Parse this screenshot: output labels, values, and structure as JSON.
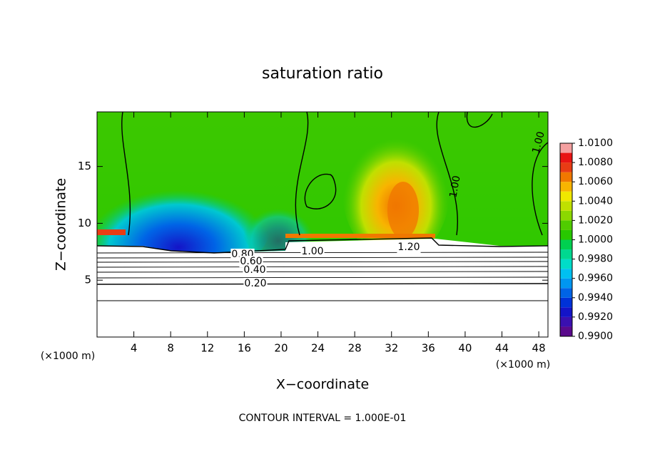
{
  "chart_data": {
    "type": "contour",
    "title": "saturation ratio",
    "x_label": "X−coordinate",
    "y_label": "Z−coordinate",
    "x_unit": "(×1000 m)",
    "footer": "CONTOUR INTERVAL = 1.000E-01",
    "xlim": [
      0,
      49
    ],
    "ylim": [
      0,
      19.8
    ],
    "xticks": [
      4,
      8,
      12,
      16,
      20,
      24,
      28,
      32,
      36,
      40,
      44,
      48
    ],
    "yticks": [
      5,
      10,
      15
    ],
    "contour_labels": [
      "0.80",
      "0.60",
      "0.40",
      "0.20",
      "1.00",
      "1.20",
      "1.00",
      "1.00"
    ],
    "colorbar": {
      "lim": [
        0.99,
        1.01
      ],
      "ticks": [
        {
          "value": 0.99,
          "label": "0.9900"
        },
        {
          "value": 0.992,
          "label": "0.9920"
        },
        {
          "value": 0.994,
          "label": "0.9940"
        },
        {
          "value": 0.996,
          "label": "0.9960"
        },
        {
          "value": 0.998,
          "label": "0.9980"
        },
        {
          "value": 1.0,
          "label": "1.0000"
        },
        {
          "value": 1.002,
          "label": "1.0020"
        },
        {
          "value": 1.004,
          "label": "1.0040"
        },
        {
          "value": 1.006,
          "label": "1.0060"
        },
        {
          "value": 1.008,
          "label": "1.0080"
        },
        {
          "value": 1.01,
          "label": "1.0100"
        }
      ],
      "colors": [
        "#5a0a8c",
        "#3a10b0",
        "#1414c8",
        "#0032d8",
        "#0064e6",
        "#0096f0",
        "#00c0f0",
        "#00dcc8",
        "#00d890",
        "#00d050",
        "#28c800",
        "#50cc00",
        "#8cd800",
        "#c0e000",
        "#f0e800",
        "#f8b400",
        "#f07800",
        "#e83c14",
        "#e81414",
        "#f4a0a0"
      ]
    }
  }
}
